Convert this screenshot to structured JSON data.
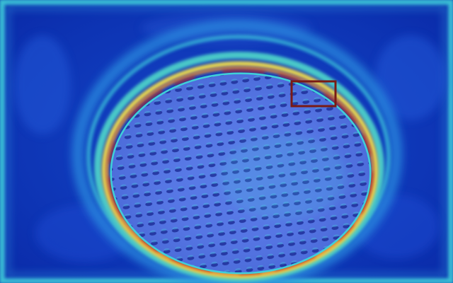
{
  "image": {
    "description_hidden": "",
    "colormap": "jet",
    "colors": {
      "background_deep": "#0a2aa8",
      "background_mid": "#1546c8",
      "edge_cyan": "#3fd0d8",
      "ring_yellow": "#e8d850",
      "ring_orange": "#e88a30",
      "ring_red": "#b8241c",
      "disc_light": "#5a7ee8",
      "hole_dark": "#1e2f9a",
      "highlight_cyan": "#48c8e0",
      "box_stroke": "#7a1a14"
    }
  }
}
